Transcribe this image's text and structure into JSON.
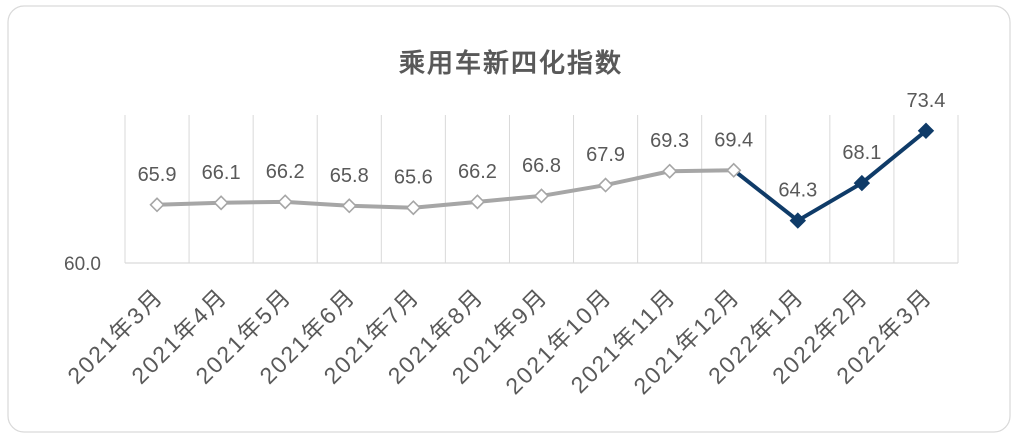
{
  "chart_data": {
    "type": "line",
    "title": "乘用车新四化指数",
    "categories": [
      "2021年3月",
      "2021年4月",
      "2021年5月",
      "2021年6月",
      "2021年7月",
      "2021年8月",
      "2021年9月",
      "2021年10月",
      "2021年11月",
      "2021年12月",
      "2022年1月",
      "2022年2月",
      "2022年3月"
    ],
    "series": [
      {
        "values": [
          65.9,
          66.1,
          66.2,
          65.8,
          65.6,
          66.2,
          66.8,
          67.9,
          69.3,
          69.4,
          64.3,
          68.1,
          73.4
        ]
      }
    ],
    "segments": [
      {
        "from_index": 0,
        "to_index": 9,
        "color": "#A6A6A6",
        "marker": "hollow-diamond"
      },
      {
        "from_index": 9,
        "to_index": 12,
        "color": "#0F3B68",
        "marker": "filled-diamond"
      }
    ],
    "ylim": [
      60,
      75
    ],
    "y_tick_labels": [
      "60.0"
    ],
    "data_labels": true,
    "grid": {
      "vertical": true,
      "horizontal": false
    }
  },
  "colors": {
    "text": "#595959",
    "grid": "#D9D9D9",
    "border": "#D9D9D9",
    "background": "#FFFFFF"
  }
}
